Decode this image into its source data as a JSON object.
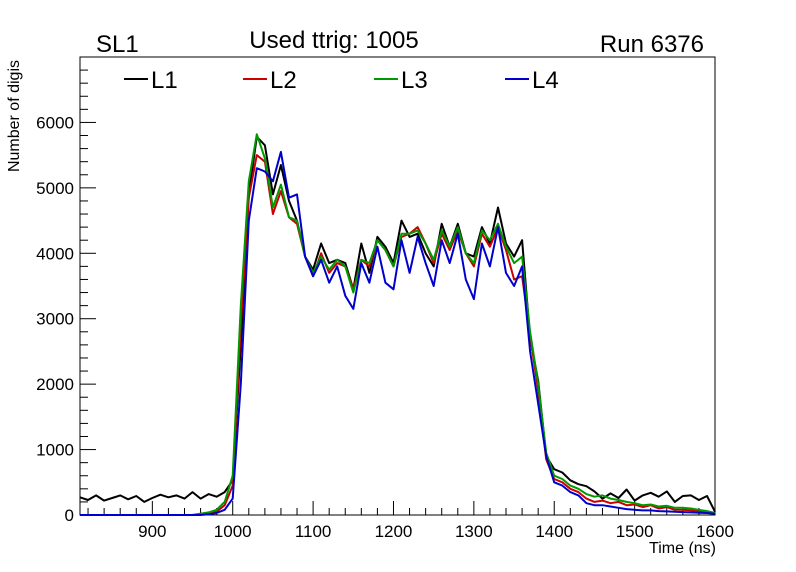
{
  "header": {
    "left": "SL1",
    "center": "Used ttrig: 1005",
    "right": "Run 6376"
  },
  "chart_data": {
    "type": "line",
    "title": "Used ttrig: 1005",
    "xlabel": "Time (ns)",
    "ylabel": "Number of digis",
    "xlim": [
      810,
      1600
    ],
    "ylim": [
      0,
      7000
    ],
    "grid": false,
    "legend_position": "top",
    "x_ticks": [
      900,
      1000,
      1100,
      1200,
      1300,
      1400,
      1500,
      1600
    ],
    "x_tick_labels": [
      "900",
      "1000",
      "1100",
      "1200",
      "1300",
      "1400",
      "1500",
      "1600"
    ],
    "y_ticks": [
      0,
      1000,
      2000,
      3000,
      4000,
      5000,
      6000
    ],
    "y_tick_labels": [
      "0",
      "1000",
      "2000",
      "3000",
      "4000",
      "5000",
      "6000"
    ],
    "x": [
      810,
      820,
      830,
      840,
      850,
      860,
      870,
      880,
      890,
      900,
      910,
      920,
      930,
      940,
      950,
      960,
      970,
      980,
      990,
      1000,
      1010,
      1020,
      1030,
      1040,
      1050,
      1060,
      1070,
      1080,
      1090,
      1100,
      1110,
      1120,
      1130,
      1140,
      1150,
      1160,
      1170,
      1180,
      1190,
      1200,
      1210,
      1220,
      1230,
      1240,
      1250,
      1260,
      1270,
      1280,
      1290,
      1300,
      1310,
      1320,
      1330,
      1340,
      1350,
      1360,
      1370,
      1380,
      1390,
      1400,
      1410,
      1420,
      1430,
      1440,
      1450,
      1460,
      1470,
      1480,
      1490,
      1500,
      1510,
      1520,
      1530,
      1540,
      1550,
      1560,
      1570,
      1580,
      1590,
      1600
    ],
    "series": [
      {
        "name": "L1",
        "color": "#000000",
        "values": [
          270,
          230,
          300,
          220,
          260,
          300,
          240,
          290,
          200,
          260,
          310,
          270,
          300,
          250,
          350,
          250,
          320,
          280,
          350,
          530,
          2600,
          4900,
          5780,
          5650,
          4900,
          5350,
          4800,
          4500,
          3950,
          3750,
          4150,
          3850,
          3900,
          3850,
          3450,
          4150,
          3700,
          4250,
          4100,
          3850,
          4500,
          4250,
          4300,
          4000,
          3800,
          4450,
          4100,
          4450,
          4000,
          3950,
          4400,
          4150,
          4700,
          4150,
          3950,
          4200,
          2700,
          2050,
          900,
          700,
          650,
          530,
          470,
          440,
          360,
          250,
          330,
          260,
          390,
          220,
          300,
          340,
          280,
          360,
          200,
          290,
          300,
          230,
          290,
          50
        ]
      },
      {
        "name": "L2",
        "color": "#cc0000",
        "values": [
          0,
          0,
          0,
          0,
          0,
          0,
          0,
          0,
          0,
          0,
          0,
          0,
          0,
          0,
          0,
          20,
          30,
          50,
          150,
          450,
          2900,
          4850,
          5500,
          5400,
          4600,
          4950,
          4550,
          4450,
          3950,
          3650,
          4000,
          3700,
          3850,
          3800,
          3450,
          3900,
          3800,
          4200,
          4050,
          3800,
          4250,
          4300,
          4400,
          4150,
          3850,
          4300,
          4050,
          4350,
          4000,
          3800,
          4300,
          4100,
          4400,
          4050,
          3600,
          3650,
          2750,
          1900,
          850,
          550,
          500,
          400,
          350,
          250,
          200,
          220,
          180,
          200,
          150,
          160,
          120,
          150,
          100,
          120,
          80,
          80,
          70,
          60,
          40,
          20
        ]
      },
      {
        "name": "L3",
        "color": "#009900",
        "values": [
          0,
          0,
          0,
          0,
          0,
          0,
          0,
          0,
          0,
          0,
          0,
          0,
          0,
          0,
          0,
          20,
          40,
          80,
          200,
          600,
          3200,
          5100,
          5820,
          5450,
          4700,
          5050,
          4550,
          4500,
          3950,
          3700,
          3950,
          3750,
          3900,
          3800,
          3400,
          3900,
          3850,
          4200,
          4050,
          3800,
          4300,
          4300,
          4350,
          4150,
          3900,
          4350,
          4100,
          4400,
          4000,
          3850,
          4350,
          4200,
          4450,
          4100,
          3850,
          3950,
          2800,
          2000,
          950,
          600,
          550,
          450,
          400,
          320,
          280,
          300,
          250,
          230,
          200,
          180,
          150,
          160,
          130,
          140,
          110,
          110,
          100,
          80,
          60,
          30
        ]
      },
      {
        "name": "L4",
        "color": "#0000cc",
        "values": [
          0,
          0,
          0,
          0,
          0,
          0,
          0,
          0,
          0,
          0,
          0,
          0,
          0,
          0,
          0,
          0,
          10,
          30,
          80,
          250,
          2000,
          4500,
          5300,
          5250,
          5100,
          5550,
          4850,
          4900,
          3950,
          3650,
          3900,
          3550,
          3800,
          3350,
          3150,
          3850,
          3550,
          4100,
          3550,
          3450,
          4200,
          3700,
          4250,
          3850,
          3500,
          4200,
          3850,
          4300,
          3600,
          3300,
          4150,
          3800,
          4400,
          3700,
          3500,
          3800,
          2500,
          1700,
          900,
          500,
          450,
          350,
          300,
          180,
          150,
          150,
          130,
          110,
          90,
          80,
          70,
          70,
          60,
          55,
          50,
          45,
          40,
          35,
          30,
          20
        ]
      }
    ]
  }
}
